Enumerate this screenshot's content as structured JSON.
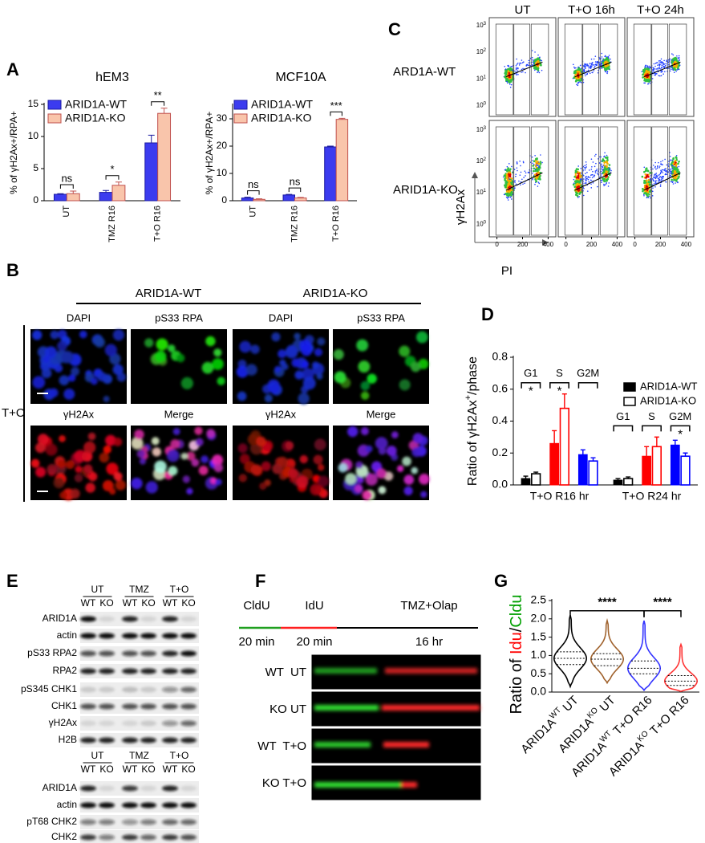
{
  "panel_labels": [
    "A",
    "B",
    "C",
    "D",
    "E",
    "F",
    "G"
  ],
  "chart_data": [
    {
      "type": "bar",
      "title": "hEM3",
      "y_label": "% of γH2Ax+/RPA+",
      "categories": [
        "UT",
        "TMZ R16",
        "T+O R16"
      ],
      "series": [
        {
          "name": "ARID1A-WT",
          "color": "#3b3bef",
          "values": [
            1.0,
            1.3,
            9.0
          ],
          "errors": [
            0.1,
            0.3,
            1.2
          ]
        },
        {
          "name": "ARID1A-KO",
          "color": "#f9c5ab",
          "values": [
            1.1,
            2.4,
            13.6
          ],
          "errors": [
            0.4,
            0.5,
            0.8
          ]
        }
      ],
      "significance": [
        "ns",
        "*",
        "**"
      ],
      "ylim": [
        0,
        15
      ],
      "yticks": [
        0,
        5,
        10,
        15
      ],
      "legend": "top-left"
    },
    {
      "type": "bar",
      "title": "MCF10A",
      "y_label": "% of γH2Ax+/RPA+",
      "categories": [
        "UT",
        "TMZ R16",
        "T+O R16"
      ],
      "series": [
        {
          "name": "ARID1A-WT",
          "color": "#3b3bef",
          "values": [
            1.0,
            2.1,
            19.7
          ],
          "errors": [
            0.3,
            0.2,
            0.3
          ]
        },
        {
          "name": "ARID1A-KO",
          "color": "#f9c5ab",
          "values": [
            0.5,
            1.0,
            29.8
          ],
          "errors": [
            0.2,
            0.2,
            0.4
          ]
        }
      ],
      "significance": [
        "ns",
        "ns",
        "***"
      ],
      "ylim": [
        0,
        35
      ],
      "yticks": [
        0,
        10,
        20,
        30
      ],
      "legend": "top-left"
    },
    {
      "type": "grouped_bar",
      "y_label": {
        "text": "Ratio of γH2Ax",
        "sup": "+",
        "tail": "/phase"
      },
      "categories": [
        "T+O R16 hr",
        "T+O R24 hr"
      ],
      "phases": [
        "G1",
        "S",
        "G2M"
      ],
      "phase_colors": [
        "#000000",
        "#ff0000",
        "#0000ff"
      ],
      "series": [
        {
          "name": "ARID1A-WT",
          "style": "filled",
          "values": [
            [
              0.04,
              0.26,
              0.19
            ],
            [
              0.03,
              0.18,
              0.25
            ]
          ],
          "errors": [
            [
              0.015,
              0.08,
              0.03
            ],
            [
              0.01,
              0.06,
              0.03
            ]
          ]
        },
        {
          "name": "ARID1A-KO",
          "style": "outline",
          "values": [
            [
              0.07,
              0.48,
              0.15
            ],
            [
              0.04,
              0.24,
              0.18
            ]
          ],
          "errors": [
            [
              0.01,
              0.09,
              0.02
            ],
            [
              0.01,
              0.06,
              0.02
            ]
          ]
        }
      ],
      "significance": [
        [
          "*",
          "*",
          null
        ],
        [
          null,
          null,
          "*"
        ]
      ],
      "ylim": [
        0,
        0.8
      ],
      "yticks": [
        {
          "value": 0,
          "label": "0.0"
        },
        0.2,
        0.4,
        0.6,
        0.8
      ],
      "legend": "top-right"
    },
    {
      "type": "violin",
      "y_label_parts": [
        {
          "text": "Ratio of ",
          "color": "#000000"
        },
        {
          "text": "Idu",
          "color": "#ff0000"
        },
        {
          "text": "/",
          "color": "#000000"
        },
        {
          "text": "Cldu",
          "color": "#00a000"
        }
      ],
      "categories": [
        {
          "gene": "ARID1A",
          "genotype": "WT",
          "treatment": "UT"
        },
        {
          "gene": "ARID1A",
          "genotype": "KO",
          "treatment": "UT"
        },
        {
          "gene": "ARID1A",
          "genotype": "WT",
          "treatment": "T+O R16"
        },
        {
          "gene": "ARID1A",
          "genotype": "KO",
          "treatment": "T+O R16"
        }
      ],
      "colors": [
        "#000000",
        "#a0622d",
        "#3333ff",
        "#ff3333"
      ],
      "min": [
        0.15,
        0.25,
        0.05,
        0.02
      ],
      "q1": [
        0.75,
        0.72,
        0.5,
        0.18
      ],
      "median": [
        0.92,
        0.9,
        0.65,
        0.3
      ],
      "q3": [
        1.1,
        1.05,
        0.85,
        0.45
      ],
      "max": [
        2.1,
        1.95,
        1.95,
        1.3
      ],
      "significance": [
        {
          "from": 0,
          "to": 2,
          "label": "****"
        },
        {
          "from": 2,
          "to": 3,
          "label": "****"
        }
      ],
      "ylim": [
        0,
        2.5
      ],
      "yticks": [
        {
          "value": 0,
          "label": "0.0"
        },
        0.5,
        {
          "value": 1,
          "label": "1.0"
        },
        1.5,
        {
          "value": 2,
          "label": "2.0"
        },
        2.5
      ]
    }
  ],
  "panel_b": {
    "groups": [
      "ARID1A-WT",
      "ARID1A-KO"
    ],
    "channels_top": [
      "DAPI",
      "pS33 RPA"
    ],
    "channels_bottom": [
      "γH2Ax",
      "Merge"
    ],
    "treatment": "T+O"
  },
  "panel_c": {
    "columns": [
      "UT",
      "T+O 16h",
      "T+O 24h"
    ],
    "rows": [
      "ARD1A-WT",
      "ARID1A-KO"
    ],
    "y_label": "γH2Ax",
    "x_label": "PI",
    "x_ticks": [
      0,
      200,
      400
    ],
    "y_tick_base": "10",
    "y_tick_exponents": [
      0,
      1,
      2,
      3
    ]
  },
  "panel_e": {
    "blot1": {
      "treatments": [
        "UT",
        "TMZ",
        "T+O"
      ],
      "genotypes": [
        "WT",
        "KO"
      ],
      "rows": [
        "ARID1A",
        "actin",
        "pS33 RPA2",
        "RPA2",
        "pS345 CHK1",
        "CHK1",
        "γH2Ax",
        "H2B"
      ]
    },
    "blot2": {
      "treatments": [
        "UT",
        "TMZ",
        "T+O"
      ],
      "genotypes": [
        "WT",
        "KO"
      ],
      "rows": [
        "ARID1A",
        "actin",
        "pT68 CHK2",
        "CHK2"
      ]
    }
  },
  "panel_f": {
    "steps": [
      {
        "label": "CldU",
        "duration": "20 min"
      },
      {
        "label": "IdU",
        "duration": "20 min"
      },
      {
        "label": "TMZ+Olap",
        "duration": "16 hr"
      }
    ],
    "fibers": [
      "WT  UT",
      "KO UT",
      "WT  T+O",
      "KO T+O"
    ]
  }
}
